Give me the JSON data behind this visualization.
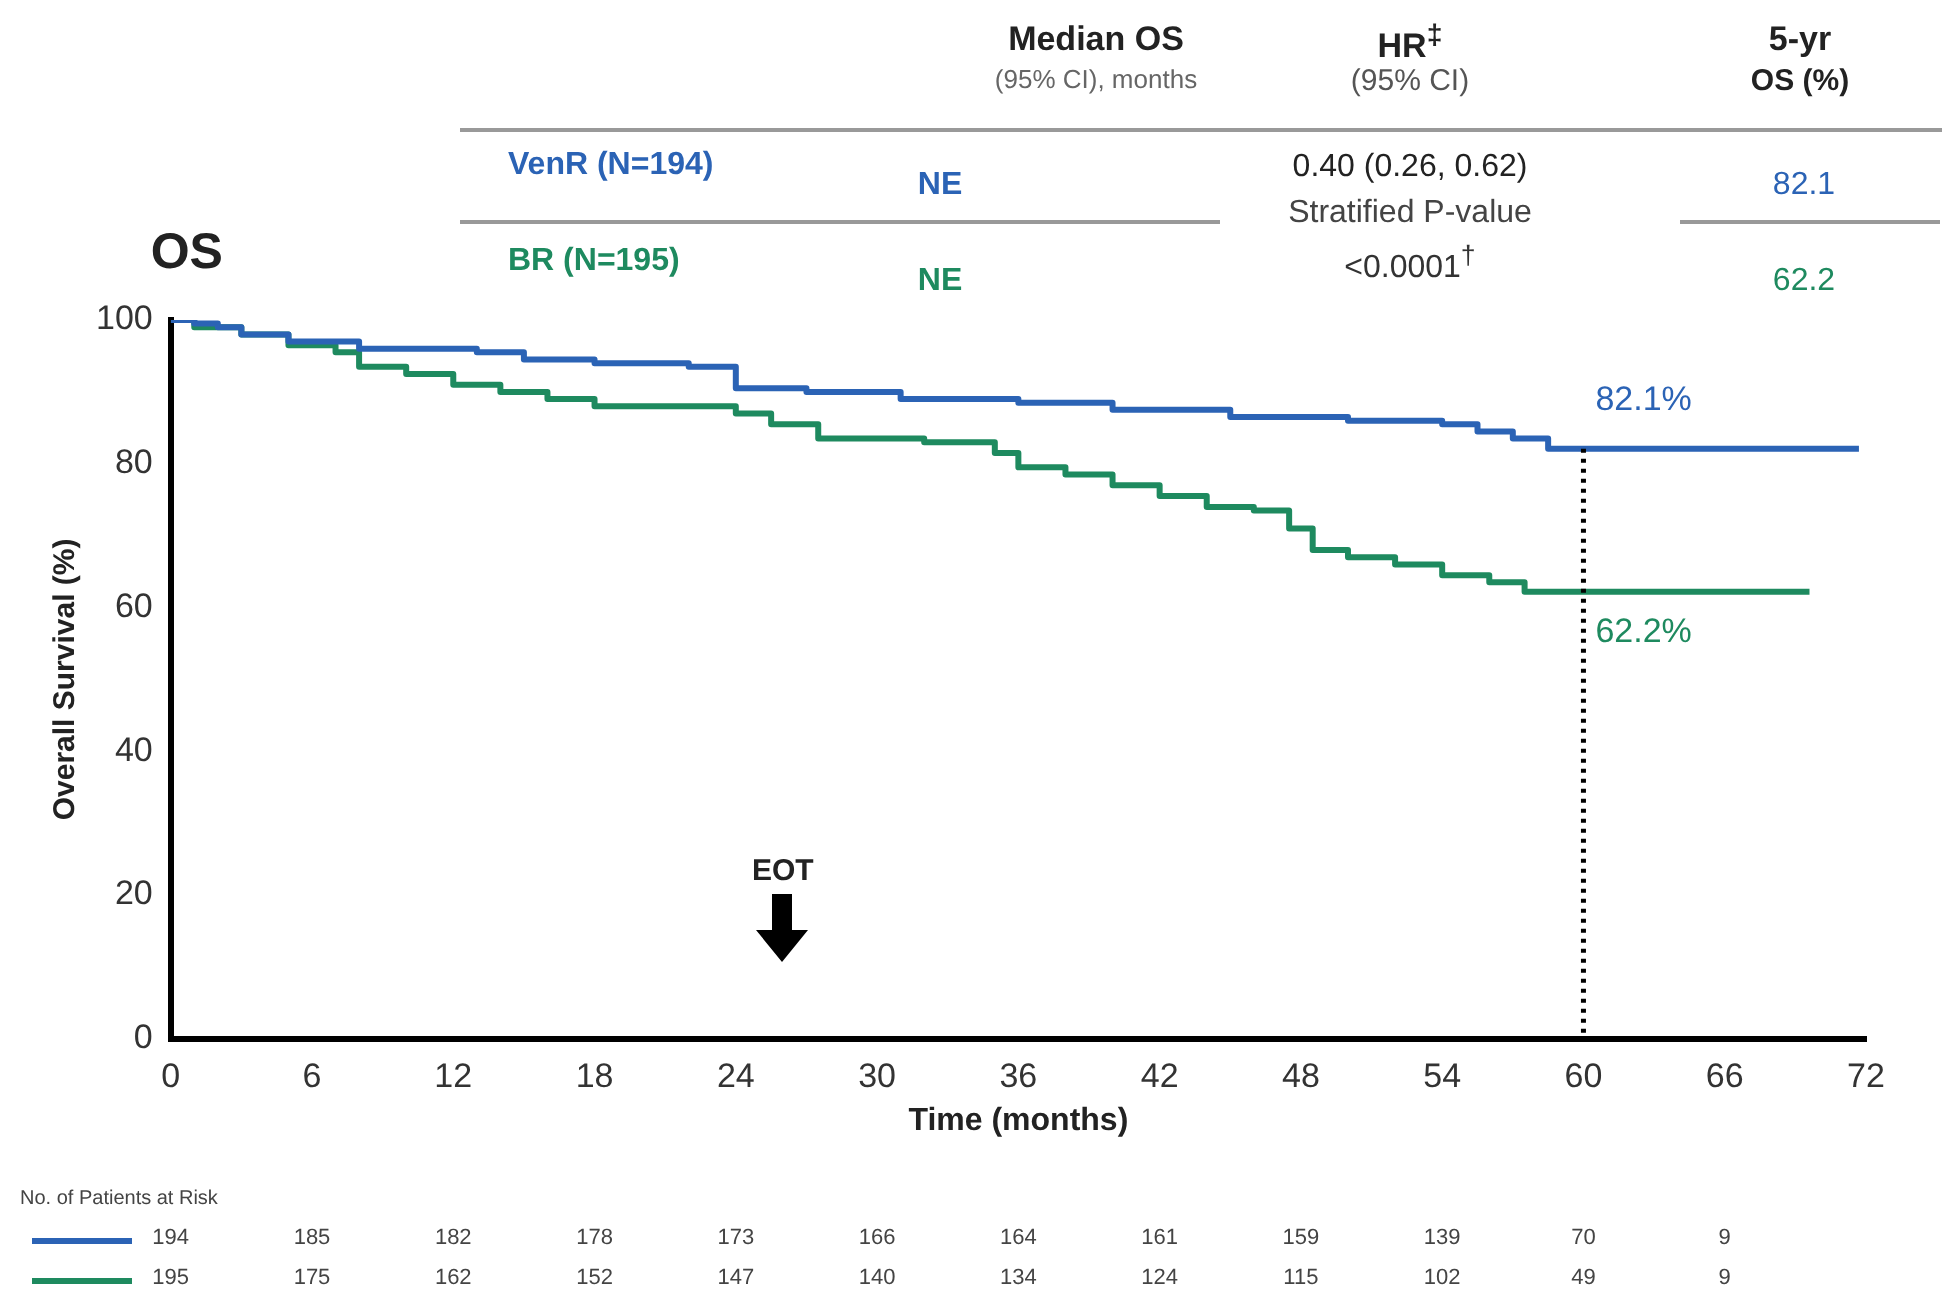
{
  "chart_data": {
    "type": "step",
    "title": "OS",
    "xlabel": "Time (months)",
    "ylabel": "Overall Survival (%)",
    "xlim": [
      0,
      72
    ],
    "xticks": [
      0,
      6,
      12,
      18,
      24,
      30,
      36,
      42,
      48,
      54,
      60,
      66,
      72
    ],
    "ylim": [
      0,
      100
    ],
    "yticks": [
      0,
      20,
      40,
      60,
      80,
      100
    ],
    "grid": false,
    "legend": false,
    "marker": "none",
    "line_style": "solid",
    "series": [
      {
        "name": "VenR (N=194)",
        "color": "#2b63b5",
        "x": [
          0,
          1,
          2,
          3,
          5,
          8,
          13,
          15,
          18,
          22,
          24,
          27,
          31,
          36,
          40,
          45,
          50,
          54,
          55.5,
          57,
          58.5,
          71.7
        ],
        "values": [
          100,
          99.5,
          99,
          98,
          97,
          96,
          95.5,
          94.5,
          94,
          93.5,
          90.5,
          90,
          89,
          88.5,
          87.5,
          86.5,
          86,
          85.5,
          84.5,
          83.5,
          82.1,
          82.1
        ]
      },
      {
        "name": "BR (N=195)",
        "color": "#1e8a5f",
        "x": [
          0,
          1,
          3,
          5,
          7,
          8,
          10,
          12,
          14,
          16,
          18,
          21,
          24,
          25.5,
          27.5,
          32,
          35,
          36,
          38,
          40,
          42,
          44,
          46,
          47.5,
          48.5,
          50,
          52,
          54,
          56,
          57.5,
          69.6
        ],
        "values": [
          100,
          99,
          98,
          96.5,
          95.5,
          93.5,
          92.5,
          91,
          90,
          89,
          88,
          88,
          87,
          85.5,
          83.5,
          83,
          81.5,
          79.5,
          78.5,
          77,
          75.5,
          74,
          73.5,
          71,
          68,
          67,
          66,
          64.5,
          63.5,
          62.2,
          62.2
        ]
      }
    ],
    "ref_lines": [
      {
        "axis": "x",
        "value": 60,
        "line_style": "dotted",
        "color": "#000000"
      }
    ],
    "annotations": [
      {
        "text": "82.1%",
        "x": 60,
        "y": 82.1
      },
      {
        "text": "62.2%",
        "x": 60,
        "y": 62.2
      },
      "EOT",
      "Median OS",
      "(95% CI), months",
      "HR$^{‡}$",
      "(95% CI)",
      "5-yr",
      "OS (%)",
      "NE",
      "NE",
      "0.40 (0.26, 0.62)",
      "Stratified P-value",
      "<0.0001$^{†}$",
      "82.1",
      "62.2",
      "No. of Patients at Risk",
      "194 185 182 178 173 166 164 161 159 139 70 9",
      "195 175 162 152 147 140 134 124 115 102 49 9"
    ]
  }
}
